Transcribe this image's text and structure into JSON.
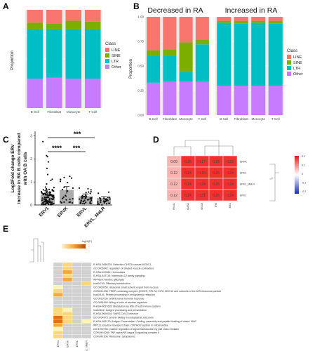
{
  "panels": {
    "A": "A",
    "B": "B",
    "C": "C",
    "D": "D",
    "E": "E"
  },
  "panel_b": {
    "left_title": "Decreased in RA",
    "right_title": "Increased in RA"
  },
  "class_legend": {
    "title": "Class",
    "items": [
      {
        "label": "LINE",
        "color": "#F8766D"
      },
      {
        "label": "SINE",
        "color": "#7CAE00"
      },
      {
        "label": "LTR",
        "color": "#00BFC4"
      },
      {
        "label": "Other",
        "color": "#C77CFF"
      }
    ]
  },
  "panel_c": {
    "sig": [
      "****",
      "***",
      "***"
    ]
  },
  "panel_d": {
    "legend_ticks": [
      "0.2",
      "0.1",
      "0",
      "-0.1",
      "-0.2"
    ]
  },
  "panel_e": {
    "legend_title": "-log10(P)"
  },
  "chart_data": [
    {
      "type": "bar",
      "panel": "A",
      "categories": [
        "B Cell",
        "Fibroblast",
        "Monocyte",
        "T Cell"
      ],
      "series": [
        {
          "name": "Other",
          "values": [
            0.3,
            0.31,
            0.3,
            0.3
          ]
        },
        {
          "name": "LTR",
          "values": [
            0.5,
            0.49,
            0.5,
            0.5
          ]
        },
        {
          "name": "SINE",
          "values": [
            0.07,
            0.06,
            0.09,
            0.08
          ]
        },
        {
          "name": "LINE",
          "values": [
            0.13,
            0.14,
            0.11,
            0.12
          ]
        }
      ],
      "ylabel": "Proportion",
      "ylim": [
        0,
        1
      ]
    },
    {
      "type": "bar",
      "panel": "B-left",
      "title": "Decreased in RA",
      "categories": [
        "B Cell",
        "Fibroblast",
        "Monocyte",
        "T Cell"
      ],
      "series": [
        {
          "name": "Other",
          "values": [
            0.33,
            0.34,
            0.34,
            0.34
          ]
        },
        {
          "name": "LTR",
          "values": [
            0.27,
            0.26,
            0.1,
            0.38
          ]
        },
        {
          "name": "SINE",
          "values": [
            0.06,
            0.07,
            0.3,
            0.05
          ]
        },
        {
          "name": "LINE",
          "values": [
            0.34,
            0.33,
            0.26,
            0.23
          ]
        }
      ],
      "ylabel": "Proportion",
      "yticks": [
        "0.00",
        "0.25",
        "0.50",
        "0.75",
        "1.00"
      ],
      "ylim": [
        0,
        1
      ]
    },
    {
      "type": "bar",
      "panel": "B-right",
      "title": "Increased in RA",
      "categories": [
        "B Cell",
        "Fibroblast",
        "Monocyte",
        "T Cell"
      ],
      "series": [
        {
          "name": "Other",
          "values": [
            0.3,
            0.3,
            0.3,
            0.3
          ]
        },
        {
          "name": "LTR",
          "values": [
            0.64,
            0.63,
            0.64,
            0.63
          ]
        },
        {
          "name": "SINE",
          "values": [
            0.02,
            0.03,
            0.02,
            0.03
          ]
        },
        {
          "name": "LINE",
          "values": [
            0.04,
            0.04,
            0.04,
            0.04
          ]
        }
      ],
      "ylim": [
        0,
        1
      ]
    },
    {
      "type": "bar",
      "panel": "C",
      "categories": [
        "ERV1",
        "ERVK",
        "ERVL",
        "ERVL_MaLR"
      ],
      "values": [
        0.45,
        0.65,
        0.38,
        0.3
      ],
      "errors": [
        0.07,
        0.15,
        0.1,
        0.06
      ],
      "ylabel": "Log2Fold change ERV increase in RA B cells compared with OA B cells",
      "yticks": [
        "0",
        "1",
        "2",
        "3"
      ],
      "ylim": [
        0,
        3.2
      ]
    },
    {
      "type": "heatmap",
      "panel": "D",
      "rows": [
        "ERVK",
        "ERVL",
        "ERVL_MaLR",
        "ERV1"
      ],
      "columns": [
        "IFI44L",
        "OAS1",
        "ISG15",
        "IFI6",
        "MX1"
      ],
      "values": [
        [
          0.09,
          0.25,
          0.17,
          0.23,
          0.23
        ],
        [
          0.12,
          0.24,
          0.18,
          0.25,
          0.24
        ],
        [
          0.12,
          0.24,
          0.24,
          0.25,
          0.24
        ],
        [
          0.12,
          0.24,
          0.21,
          0.25,
          0.24
        ]
      ],
      "legend_range": [
        -0.2,
        0.2
      ]
    },
    {
      "type": "heatmap",
      "panel": "E",
      "terms": [
        "R-HSA-3656225: Defective CHST6 causes MCDC1",
        "GO:0006942: regulation of striated muscle contraction",
        "R-HSA-109582: Hemostasis",
        "R-HSA-447115: Interleukin-12 family signaling",
        "WP4629: Aerobic glycolysis",
        "hsa04740: Olfactory transduction",
        "GO:0000056: ribosomal small subunit export from nucleus",
        "CORUM:338: TRBP containing complex (DICER, RPL7A, EIF6, MOV10 and subunits of the 60S ribosomal particle",
        "hsa04141: Protein processing in endoplasmic reticulum",
        "GO:0019730: antimicrobial humoral response",
        "GO:0051640: killing of cells of another organism",
        "R-HSA-9637628: Modulation by Mtb of host immune system",
        "hsa04612: Antigen processing and presentation",
        "R-HSA-9694516: SARS-CoV-2 Infection",
        "GO:0034975: protein folding in endoplasmic reticulum",
        "R-HSA-983170: Antigen Presentation: Folding, assembly and peptide loading of class I MHC",
        "WP111: Electron transport chain: OXPHOS system in mitochondria",
        "GO:1990756: positive regulation of signal transduction by p53 class mediator",
        "CORUM:5266: TNF-alpha/NF-kappa B signaling complex 6",
        "CORUM:306: Ribosome, cytoplasmic"
      ],
      "columns": [
        "ERV1",
        "ERVK",
        "ERVL",
        "ERVL_MaLR"
      ],
      "values": [
        [
          0,
          2,
          0,
          0
        ],
        [
          0,
          2,
          0,
          0
        ],
        [
          0,
          3,
          0,
          0
        ],
        [
          0,
          2,
          0,
          0
        ],
        [
          0,
          3,
          0,
          0
        ],
        [
          0,
          0,
          0,
          2
        ],
        [
          1,
          0,
          0,
          0
        ],
        [
          2,
          0,
          0,
          0
        ],
        [
          3,
          0,
          0,
          0
        ],
        [
          0,
          0,
          0,
          0
        ],
        [
          0,
          0,
          0,
          0
        ],
        [
          0,
          0,
          0,
          0
        ],
        [
          2,
          1,
          0,
          0
        ],
        [
          2,
          2,
          0,
          0
        ],
        [
          4,
          2,
          0,
          0
        ],
        [
          4,
          2,
          0,
          1
        ],
        [
          3,
          0,
          0,
          0
        ],
        [
          1,
          0,
          0,
          0
        ],
        [
          2,
          0,
          0,
          0
        ],
        [
          2,
          0,
          0,
          0
        ]
      ]
    }
  ]
}
